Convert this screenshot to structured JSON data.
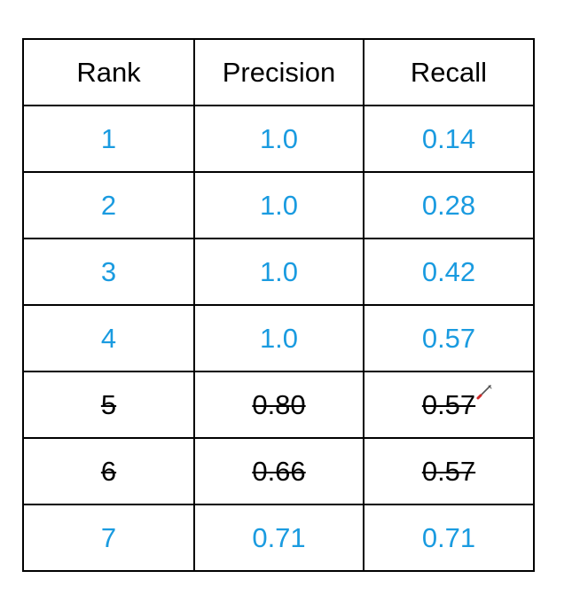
{
  "table": {
    "headers": [
      "Rank",
      "Precision",
      "Recall"
    ],
    "rows": [
      {
        "rank": "1",
        "precision": "1.0",
        "recall": "0.14",
        "struck": false
      },
      {
        "rank": "2",
        "precision": "1.0",
        "recall": "0.28",
        "struck": false
      },
      {
        "rank": "3",
        "precision": "1.0",
        "recall": "0.42",
        "struck": false
      },
      {
        "rank": "4",
        "precision": "1.0",
        "recall": "0.57",
        "struck": false
      },
      {
        "rank": "5",
        "precision": "0.80",
        "recall": "0.57",
        "struck": true
      },
      {
        "rank": "6",
        "precision": "0.66",
        "recall": "0.57",
        "struck": true
      },
      {
        "rank": "7",
        "precision": "0.71",
        "recall": "0.71",
        "struck": false
      }
    ]
  },
  "colors": {
    "value_text": "#1a9be0",
    "struck_text": "#000000",
    "border": "#000000",
    "pen_tip": "#d22a2a"
  },
  "cursor": {
    "icon": "pen-cursor-icon"
  }
}
